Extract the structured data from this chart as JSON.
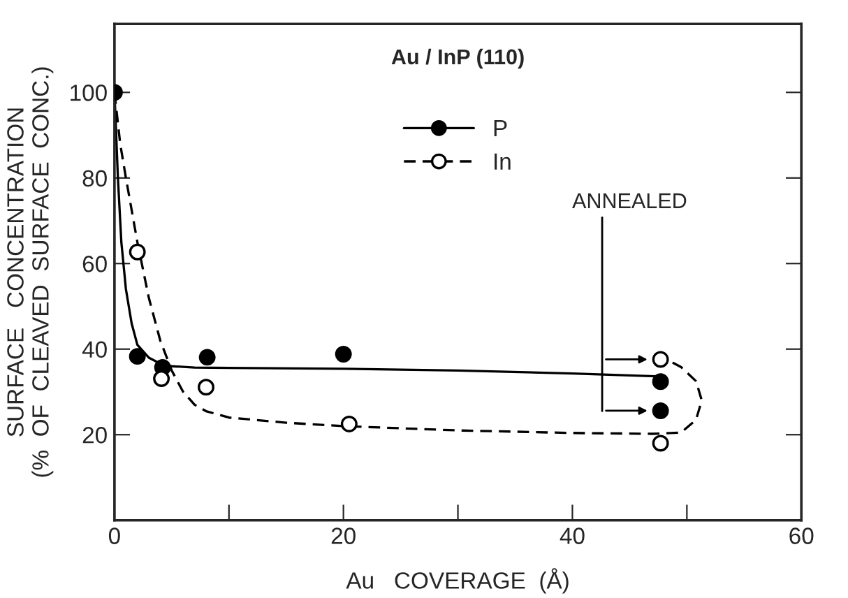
{
  "chart_data": {
    "type": "scatter",
    "title": "Au / InP (110)",
    "xlabel": "Au   COVERAGE  (Å)",
    "ylabel": "SURFACE   CONCENTRATION\n(%  OF  CLEAVED  SURFACE  CONC.)",
    "annotations": [
      "ANNEALED"
    ],
    "series": [
      {
        "name": "P",
        "color": "#000000",
        "marker": "circle",
        "x": [
          0,
          2.0,
          4.2,
          8.1,
          20,
          47.7,
          47.7
        ],
        "values": [
          100,
          38.3,
          35.7,
          38.1,
          38.8,
          32.4,
          25.6
        ]
      },
      {
        "name": "In",
        "color": "#ffffff",
        "marker": "circle",
        "x": [
          2.0,
          4.1,
          8.0,
          20.5,
          47.7,
          47.7
        ],
        "values": [
          62.7,
          33.1,
          31.1,
          22.5,
          37.6,
          18.0
        ]
      },
      {
        "type": "line",
        "color": "#000000",
        "line_style": "solid",
        "marker": "none",
        "x": [
          0,
          0.3,
          0.6,
          1.0,
          1.5,
          2.0,
          3.0,
          4.0,
          5.0,
          7.0,
          10,
          20,
          30,
          40,
          47.7
        ],
        "values": [
          100,
          80,
          65,
          54,
          46,
          41,
          38,
          36.6,
          36,
          35.7,
          35.6,
          35.4,
          35,
          34.3,
          33.6
        ]
      },
      {
        "type": "line",
        "color": "#000000",
        "line_style": "dashed",
        "marker": "none",
        "x": [
          0,
          0.5,
          1.0,
          2.0,
          3.0,
          4.0,
          5.0,
          6.0,
          7.0,
          8.0,
          10,
          15,
          20,
          30,
          40,
          47,
          49.5,
          50.8,
          51.3,
          50.8,
          49.5,
          48.3
        ],
        "values": [
          100,
          88,
          80,
          65,
          52,
          42,
          35,
          30,
          27,
          25.5,
          24,
          22.8,
          22,
          21,
          20.4,
          20.2,
          20.5,
          23.5,
          28,
          32.5,
          35.8,
          37.5
        ]
      }
    ],
    "xlim": [
      0,
      60
    ],
    "ylim": [
      0,
      116
    ],
    "xticks": [
      0,
      {
        "value": 10,
        "label": null
      },
      20,
      {
        "value": 30,
        "label": null
      },
      40,
      {
        "value": 50,
        "label": null
      },
      60
    ],
    "yticks": [
      20,
      40,
      60,
      80,
      100
    ],
    "grid": false,
    "legend": "top"
  }
}
